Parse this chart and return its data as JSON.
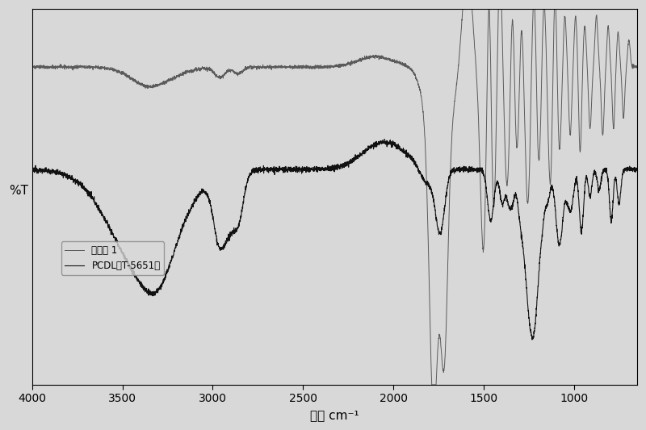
{
  "title": "",
  "xlabel": "波数 cm⁻¹",
  "ylabel": "%T",
  "xlim": [
    4000,
    650
  ],
  "ylim": [
    -5,
    105
  ],
  "legend1": "PCDL（T-5651）",
  "legend2": "实施例 1",
  "bg_color": "#d8d8d8",
  "line1_color": "#111111",
  "line2_color": "#444444",
  "figsize": [
    8.0,
    5.33
  ],
  "dpi": 100
}
